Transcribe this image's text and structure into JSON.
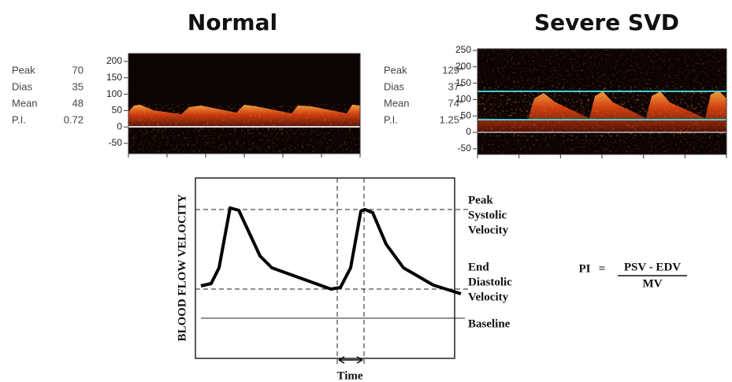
{
  "normal": {
    "title": "Normal",
    "stats": [
      {
        "label": "Peak",
        "value": "70"
      },
      {
        "label": "Dias",
        "value": "35"
      },
      {
        "label": "Mean",
        "value": "48"
      },
      {
        "label": "P.I.",
        "value": "0.72"
      }
    ],
    "yticks": [
      "200",
      "150",
      "100",
      "50",
      "0",
      "-50"
    ]
  },
  "severe": {
    "title": "Severe SVD",
    "stats": [
      {
        "label": "Peak",
        "value": "129*"
      },
      {
        "label": "Dias",
        "value": "37*"
      },
      {
        "label": "Mean",
        "value": "74*"
      },
      {
        "label": "P.I.",
        "value": "1.25*"
      }
    ],
    "yticks": [
      "250",
      "200",
      "150",
      "100",
      "50",
      "0",
      "-50"
    ]
  },
  "diagram": {
    "y_axis_label": "BLOOD FLOW VELOCITY",
    "peak_label": [
      "Peak",
      "Systolic",
      "Velocity"
    ],
    "end_label": [
      "End",
      "Diastolic",
      "Velocity"
    ],
    "baseline_label": "Baseline",
    "time_label": "Time",
    "formula": {
      "lhs": "PI",
      "equals": "=",
      "numerator": "PSV - EDV",
      "denominator": "MV"
    }
  }
}
